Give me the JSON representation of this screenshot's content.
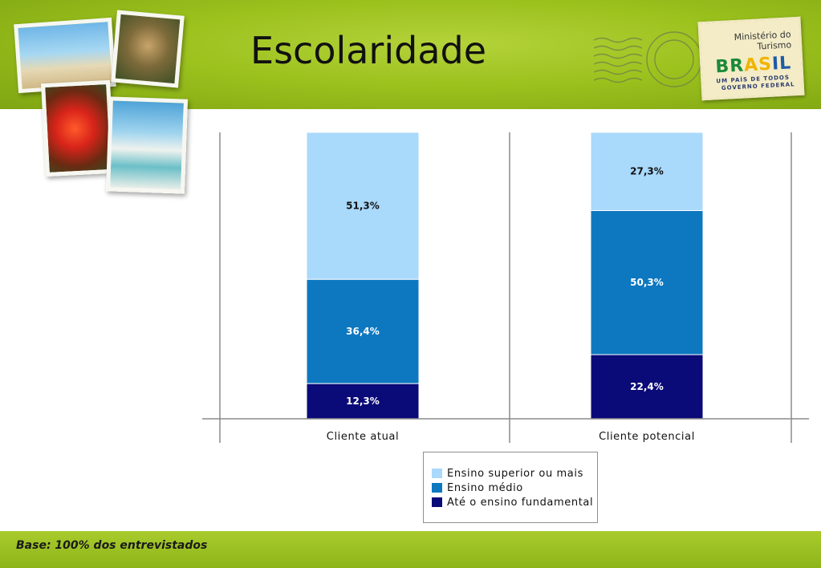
{
  "slide": {
    "title": "Escolaridade",
    "footer_note": "Base: 100% dos entrevistados"
  },
  "stamp": {
    "ministry": "Ministério do Turismo",
    "brand_letters": [
      "BR",
      "AS",
      "IL"
    ],
    "tagline": "UM PAÍS DE TODOS",
    "government": "GOVERNO FEDERAL"
  },
  "chart_data": {
    "type": "bar",
    "stacked": true,
    "percent_stacked": true,
    "title": "",
    "xlabel": "",
    "ylabel": "",
    "ylim": [
      0,
      100
    ],
    "grid": false,
    "legend_position": "bottom-center",
    "categories": [
      "Cliente atual",
      "Cliente potencial"
    ],
    "series": [
      {
        "name": "Até o ensino fundamental",
        "color": "#0a0a78",
        "label_color": "#ffffff",
        "values": [
          12.3,
          22.4
        ],
        "labels": [
          "12,3%",
          "22,4%"
        ]
      },
      {
        "name": "Ensino médio",
        "color": "#0d78c0",
        "label_color": "#ffffff",
        "values": [
          36.4,
          50.3
        ],
        "labels": [
          "36,4%",
          "50,3%"
        ]
      },
      {
        "name": "Ensino superior ou mais",
        "color": "#a9d9fb",
        "label_color": "#111111",
        "values": [
          51.3,
          27.3
        ],
        "labels": [
          "51,3%",
          "27,3%"
        ]
      }
    ],
    "legend_order": [
      "Ensino superior ou mais",
      "Ensino médio",
      "Até o ensino fundamental"
    ]
  }
}
